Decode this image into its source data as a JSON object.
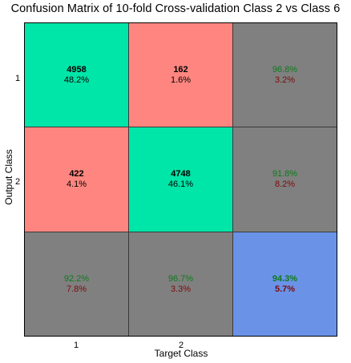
{
  "chart_data": {
    "type": "heatmap",
    "title": "Confusion Matrix of 10-fold Cross-validation Class 2 vs Class 6",
    "xlabel": "Target Class",
    "ylabel": "Output Class",
    "x_ticks": [
      "1",
      "2"
    ],
    "y_ticks": [
      "1",
      "2"
    ],
    "colors": {
      "correct": "#00e5a8",
      "incorrect": "#ff8680",
      "summary": "#808080",
      "overall": "#6a93e8",
      "pct_good": "#0d7a1a",
      "pct_bad": "#7a0a0a"
    },
    "cells": [
      {
        "row": 0,
        "col": 0,
        "kind": "correct",
        "line1": "4958",
        "line2": "48.2%"
      },
      {
        "row": 0,
        "col": 1,
        "kind": "incorrect",
        "line1": "162",
        "line2": "1.6%"
      },
      {
        "row": 0,
        "col": 2,
        "kind": "summary",
        "line1": "96.8%",
        "line2": "3.2%"
      },
      {
        "row": 1,
        "col": 0,
        "kind": "incorrect",
        "line1": "422",
        "line2": "4.1%"
      },
      {
        "row": 1,
        "col": 1,
        "kind": "correct",
        "line1": "4748",
        "line2": "46.1%"
      },
      {
        "row": 1,
        "col": 2,
        "kind": "summary",
        "line1": "91.8%",
        "line2": "8.2%"
      },
      {
        "row": 2,
        "col": 0,
        "kind": "summary",
        "line1": "92.2%",
        "line2": "7.8%"
      },
      {
        "row": 2,
        "col": 1,
        "kind": "summary",
        "line1": "96.7%",
        "line2": "3.3%"
      },
      {
        "row": 2,
        "col": 2,
        "kind": "overall",
        "line1": "94.3%",
        "line2": "5.7%"
      }
    ]
  }
}
